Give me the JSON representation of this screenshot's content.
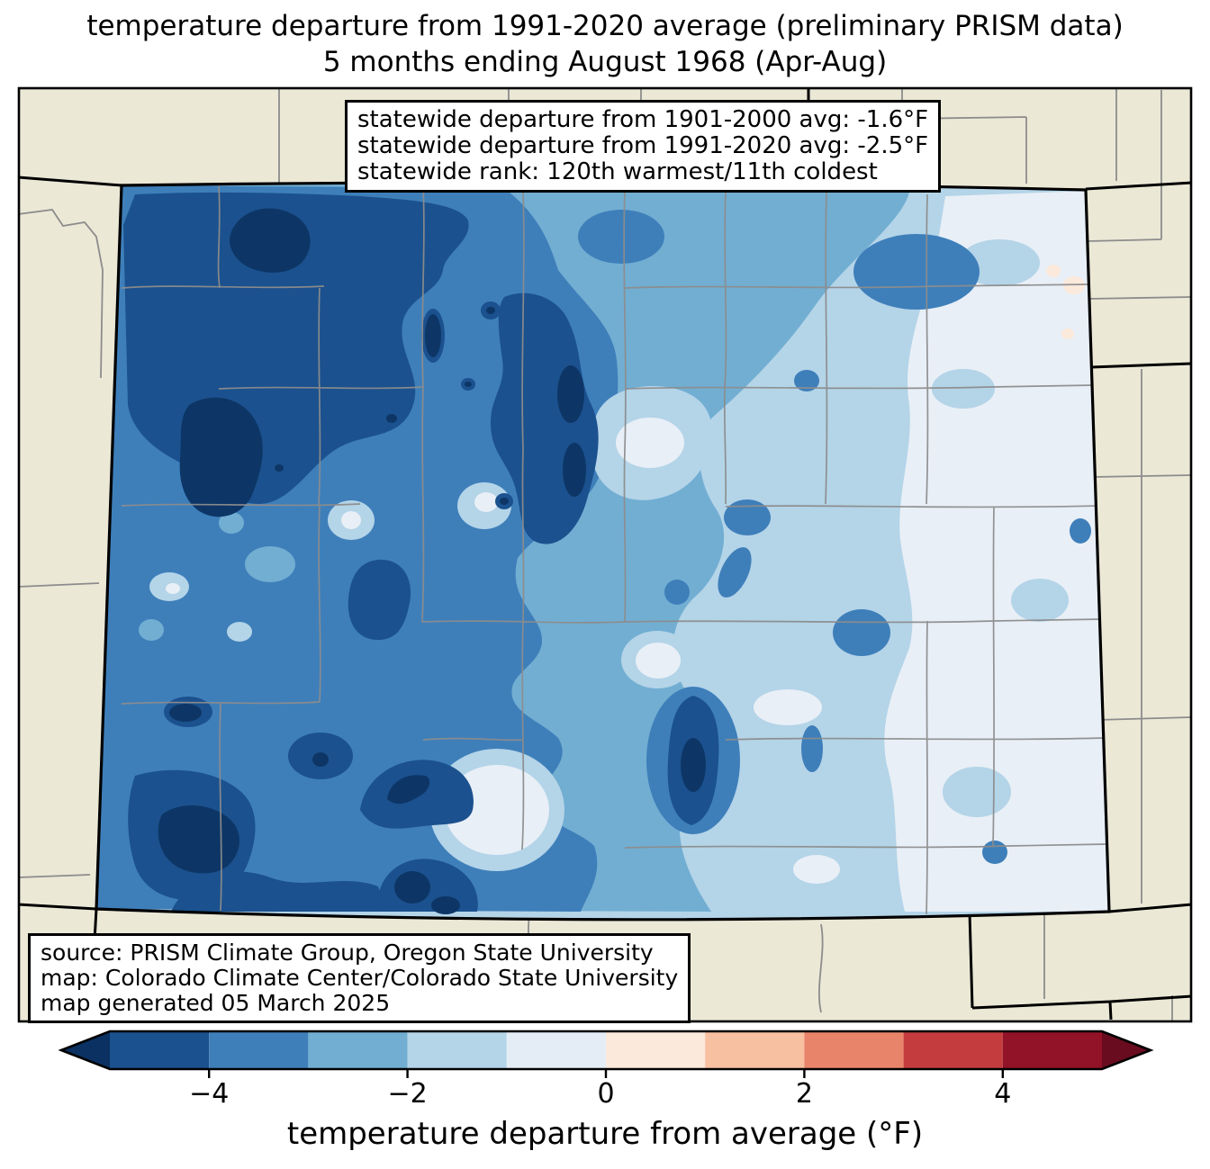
{
  "title": {
    "line1": "temperature departure from 1991-2020 average (preliminary PRISM data)",
    "line2": "5 months ending August 1968 (Apr-Aug)"
  },
  "stats_box": {
    "line1": "statewide departure from 1901-2000 avg: -1.6°F",
    "line2": "statewide departure from 1991-2020 avg: -2.5°F",
    "line3": "statewide rank: 120th warmest/11th coldest"
  },
  "credits_box": {
    "line1": "source: PRISM Climate Group, Oregon State University",
    "line2": "map: Colorado Climate Center/Colorado State University",
    "line3": "map generated 05 March 2025"
  },
  "map": {
    "region": "Colorado",
    "out_of_state_color": "#ebe8d6",
    "state_border_color": "#000000",
    "county_line_color": "#8c8c8c",
    "levels": {
      "L0": "#0d3666",
      "L1": "#1b518e",
      "L2": "#3e7fba",
      "L3": "#72aed2",
      "L4": "#b4d4e8",
      "L5": "#e8eff6",
      "L6": "#fbe9dc",
      "out": "#ebe8d6"
    }
  },
  "colorbar": {
    "label": "temperature departure from average (°F)",
    "range": [
      -5,
      5
    ],
    "under_color": "#0a3161",
    "over_color": "#690c20",
    "segments": [
      {
        "from": -5,
        "to": -4,
        "color": "#1b518e"
      },
      {
        "from": -4,
        "to": -3,
        "color": "#3e7fba"
      },
      {
        "from": -3,
        "to": -2,
        "color": "#72aed2"
      },
      {
        "from": -2,
        "to": -1,
        "color": "#b4d4e8"
      },
      {
        "from": -1,
        "to": 0,
        "color": "#e4edf5"
      },
      {
        "from": 0,
        "to": 1,
        "color": "#fbe9dc"
      },
      {
        "from": 1,
        "to": 2,
        "color": "#f7c0a1"
      },
      {
        "from": 2,
        "to": 3,
        "color": "#e8846a"
      },
      {
        "from": 3,
        "to": 4,
        "color": "#c43c3d"
      },
      {
        "from": 4,
        "to": 5,
        "color": "#921227"
      }
    ],
    "ticks": [
      {
        "value": -4,
        "label": "−4"
      },
      {
        "value": -2,
        "label": "−2"
      },
      {
        "value": 0,
        "label": "0"
      },
      {
        "value": 2,
        "label": "2"
      },
      {
        "value": 4,
        "label": "4"
      }
    ]
  }
}
